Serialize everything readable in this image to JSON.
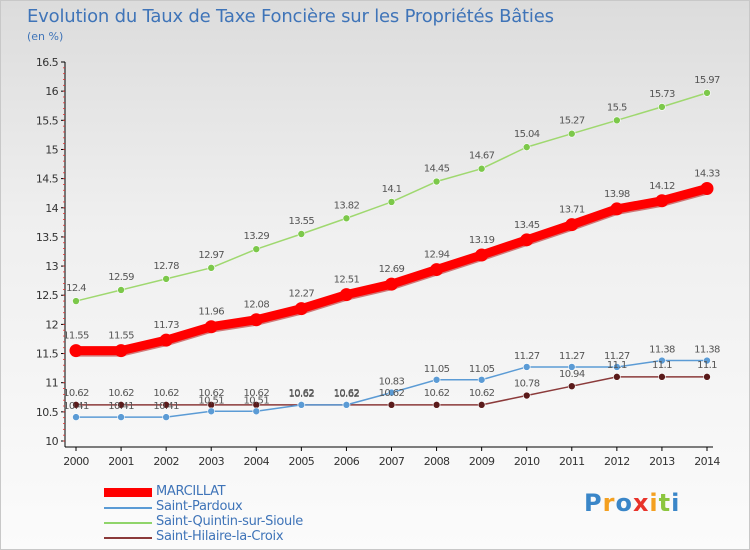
{
  "title": "Evolution du Taux de Taxe Foncière sur les Propriétés Bâties",
  "unit": "(en %)",
  "logo": "Proxiti",
  "chart_data": {
    "type": "line",
    "x": [
      "2000",
      "2001",
      "2002",
      "2003",
      "2004",
      "2005",
      "2006",
      "2007",
      "2008",
      "2009",
      "2010",
      "2011",
      "2012",
      "2013",
      "2014"
    ],
    "ylim": [
      10,
      16.5
    ],
    "yticks": [
      "10",
      "10.5",
      "11",
      "11.5",
      "12",
      "12.5",
      "13",
      "13.5",
      "14",
      "14.5",
      "15",
      "15.5",
      "16",
      "16.5"
    ],
    "grid": false,
    "legend_position": "bottom-left",
    "series": [
      {
        "name": "MARCILLAT",
        "color": "#ff0000",
        "values": [
          11.55,
          11.55,
          11.73,
          11.96,
          12.08,
          12.27,
          12.51,
          12.69,
          12.94,
          13.19,
          13.45,
          13.71,
          13.98,
          14.12,
          14.33
        ],
        "labels": [
          "11.55",
          "11.55",
          "11.73",
          "11.96",
          "12.08",
          "12.27",
          "12.51",
          "12.69",
          "12.94",
          "13.19",
          "13.45",
          "13.71",
          "13.98",
          "14.12",
          "14.33"
        ]
      },
      {
        "name": "Saint-Pardoux",
        "color": "#5b9bd5",
        "values": [
          10.41,
          10.41,
          10.41,
          10.51,
          10.51,
          10.62,
          10.62,
          10.83,
          11.05,
          11.05,
          11.27,
          11.27,
          11.27,
          11.38,
          11.38
        ],
        "labels": [
          "10.41",
          "10.41",
          "10.41",
          "10.51",
          "10.51",
          "10.62",
          "10.62",
          "10.83",
          "11.05",
          "11.05",
          "11.27",
          "11.27",
          "11.27",
          "11.38",
          "11.38"
        ]
      },
      {
        "name": "Saint-Quintin-sur-Sioule",
        "color": "#8fd46a",
        "values": [
          12.4,
          12.59,
          12.78,
          12.97,
          13.29,
          13.55,
          13.82,
          14.1,
          14.45,
          14.67,
          15.04,
          15.27,
          15.5,
          15.73,
          15.97
        ],
        "labels": [
          "12.4",
          "12.59",
          "12.78",
          "12.97",
          "13.29",
          "13.55",
          "13.82",
          "14.1",
          "14.45",
          "14.67",
          "15.04",
          "15.27",
          "15.5",
          "15.73",
          "15.97"
        ]
      },
      {
        "name": "Saint-Hilaire-la-Croix",
        "color": "#8b3a3a",
        "values": [
          10.62,
          10.62,
          10.62,
          10.62,
          10.62,
          10.62,
          10.62,
          10.62,
          10.62,
          10.62,
          10.78,
          10.94,
          11.1,
          11.1,
          11.1
        ],
        "labels": [
          "10.62",
          "10.62",
          "10.62",
          "10.62",
          "10.62",
          "10.62",
          "10.62",
          "10.62",
          "10.62",
          "10.62",
          "10.78",
          "10.94",
          "11.1",
          "11.1",
          "11.1"
        ]
      }
    ]
  }
}
